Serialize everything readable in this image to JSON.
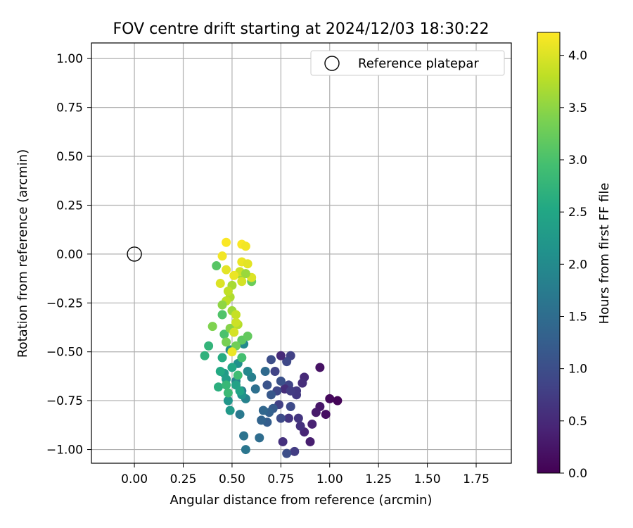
{
  "chart_data": {
    "type": "scatter",
    "title": "FOV centre drift starting at 2024/12/03 18:30:22",
    "xlabel": "Angular distance from reference (arcmin)",
    "ylabel": "Rotation from reference (arcmin)",
    "xlim": [
      -0.22,
      1.93
    ],
    "ylim": [
      -1.07,
      1.08
    ],
    "xticks": [
      0.0,
      0.25,
      0.5,
      0.75,
      1.0,
      1.25,
      1.5,
      1.75
    ],
    "xtick_labels": [
      "0.00",
      "0.25",
      "0.50",
      "0.75",
      "1.00",
      "1.25",
      "1.50",
      "1.75"
    ],
    "yticks": [
      1.0,
      0.75,
      0.5,
      0.25,
      0.0,
      -0.25,
      -0.5,
      -0.75,
      -1.0
    ],
    "ytick_labels": [
      "1.00",
      "0.75",
      "0.50",
      "0.25",
      "0.00",
      "−0.25",
      "−0.50",
      "−0.75",
      "−1.00"
    ],
    "grid": true,
    "legend": {
      "position": "top-right",
      "entries": [
        {
          "label": "Reference platepar",
          "marker": "open-circle"
        }
      ]
    },
    "reference_point": {
      "x": 0.0,
      "y": 0.0
    },
    "colorbar": {
      "label": "Hours from first FF file",
      "colormap": "viridis",
      "range": [
        0.0,
        4.22
      ],
      "ticks": [
        0.0,
        0.5,
        1.0,
        1.5,
        2.0,
        2.5,
        3.0,
        3.5,
        4.0
      ],
      "tick_labels": [
        "0.0",
        "0.5",
        "1.0",
        "1.5",
        "2.0",
        "2.5",
        "3.0",
        "3.5",
        "4.0"
      ]
    },
    "points": [
      [
        1.04,
        -0.75,
        0.05
      ],
      [
        1.0,
        -0.74,
        0.1
      ],
      [
        0.98,
        -0.82,
        0.15
      ],
      [
        0.95,
        -0.58,
        0.2
      ],
      [
        0.95,
        -0.78,
        0.25
      ],
      [
        0.93,
        -0.81,
        0.3
      ],
      [
        0.9,
        -0.96,
        0.35
      ],
      [
        0.91,
        -0.87,
        0.4
      ],
      [
        0.87,
        -0.91,
        0.45
      ],
      [
        0.87,
        -0.63,
        0.5
      ],
      [
        0.86,
        -0.66,
        0.55
      ],
      [
        0.85,
        -0.88,
        0.6
      ],
      [
        0.84,
        -0.84,
        0.65
      ],
      [
        0.83,
        -0.72,
        0.7
      ],
      [
        0.82,
        -1.01,
        0.75
      ],
      [
        0.8,
        -0.52,
        0.8
      ],
      [
        0.79,
        -0.67,
        0.85
      ],
      [
        0.78,
        -0.55,
        0.9
      ],
      [
        0.8,
        -0.78,
        0.95
      ],
      [
        0.78,
        -1.02,
        1.0
      ],
      [
        0.75,
        -0.52,
        0.5
      ],
      [
        0.77,
        -0.69,
        0.55
      ],
      [
        0.76,
        -0.96,
        0.6
      ],
      [
        0.79,
        -0.84,
        0.65
      ],
      [
        0.83,
        -0.7,
        0.7
      ],
      [
        0.8,
        -0.7,
        0.75
      ],
      [
        0.74,
        -0.77,
        0.8
      ],
      [
        0.72,
        -0.6,
        0.85
      ],
      [
        0.73,
        -0.7,
        0.9
      ],
      [
        0.75,
        -0.84,
        0.95
      ],
      [
        0.7,
        -0.54,
        1.0
      ],
      [
        0.75,
        -0.65,
        1.05
      ],
      [
        0.68,
        -0.67,
        1.1
      ],
      [
        0.7,
        -0.72,
        1.15
      ],
      [
        0.71,
        -0.79,
        1.2
      ],
      [
        0.68,
        -0.86,
        1.25
      ],
      [
        0.69,
        -0.81,
        1.3
      ],
      [
        0.65,
        -0.85,
        1.35
      ],
      [
        0.66,
        -0.8,
        1.4
      ],
      [
        0.67,
        -0.6,
        1.45
      ],
      [
        0.64,
        -0.94,
        1.5
      ],
      [
        0.62,
        -0.69,
        1.55
      ],
      [
        0.56,
        -0.93,
        1.6
      ],
      [
        0.57,
        -1.0,
        1.65
      ],
      [
        0.54,
        -0.82,
        1.7
      ],
      [
        0.55,
        -0.7,
        1.75
      ],
      [
        0.6,
        -0.63,
        1.8
      ],
      [
        0.57,
        -0.74,
        1.85
      ],
      [
        0.52,
        -0.65,
        1.9
      ],
      [
        0.58,
        -0.6,
        1.95
      ],
      [
        0.56,
        -0.46,
        2.0
      ],
      [
        0.49,
        -0.49,
        2.05
      ],
      [
        0.53,
        -0.56,
        2.1
      ],
      [
        0.55,
        -0.72,
        2.15
      ],
      [
        0.48,
        -0.75,
        2.2
      ],
      [
        0.49,
        -0.8,
        2.25
      ],
      [
        0.46,
        -0.61,
        2.3
      ],
      [
        0.47,
        -0.64,
        2.35
      ],
      [
        0.52,
        -0.67,
        2.4
      ],
      [
        0.54,
        -0.7,
        2.45
      ],
      [
        0.5,
        -0.58,
        2.5
      ],
      [
        0.44,
        -0.6,
        2.55
      ],
      [
        0.45,
        -0.53,
        2.6
      ],
      [
        0.43,
        -0.68,
        2.65
      ],
      [
        0.36,
        -0.52,
        2.7
      ],
      [
        0.38,
        -0.47,
        2.75
      ],
      [
        0.47,
        -0.67,
        2.8
      ],
      [
        0.48,
        -0.71,
        2.85
      ],
      [
        0.53,
        -0.62,
        2.9
      ],
      [
        0.55,
        -0.53,
        2.95
      ],
      [
        0.46,
        -0.41,
        3.0
      ],
      [
        0.45,
        -0.31,
        3.05
      ],
      [
        0.42,
        -0.06,
        3.1
      ],
      [
        0.55,
        -0.44,
        3.15
      ],
      [
        0.58,
        -0.42,
        3.2
      ],
      [
        0.6,
        -0.14,
        3.25
      ],
      [
        0.52,
        -0.47,
        3.3
      ],
      [
        0.47,
        -0.45,
        3.35
      ],
      [
        0.4,
        -0.37,
        3.4
      ],
      [
        0.49,
        -0.38,
        3.45
      ],
      [
        0.55,
        -0.11,
        3.55
      ],
      [
        0.5,
        -0.29,
        3.6
      ],
      [
        0.49,
        -0.22,
        3.7
      ],
      [
        0.53,
        -0.36,
        3.75
      ],
      [
        0.52,
        -0.31,
        3.85
      ],
      [
        0.54,
        -0.09,
        3.9
      ],
      [
        0.55,
        -0.14,
        3.95
      ],
      [
        0.44,
        -0.15,
        4.0
      ],
      [
        0.47,
        -0.08,
        4.05
      ],
      [
        0.51,
        -0.11,
        4.1
      ],
      [
        0.45,
        -0.01,
        4.15
      ],
      [
        0.47,
        0.06,
        4.2
      ],
      [
        0.55,
        0.05,
        4.2
      ],
      [
        0.57,
        0.04,
        4.15
      ],
      [
        0.55,
        -0.04,
        4.1
      ],
      [
        0.58,
        -0.05,
        4.05
      ],
      [
        0.6,
        -0.12,
        4.0
      ],
      [
        0.51,
        -0.4,
        3.95
      ],
      [
        0.52,
        -0.35,
        3.9
      ],
      [
        0.5,
        -0.5,
        4.1
      ],
      [
        0.47,
        -0.24,
        3.8
      ],
      [
        0.5,
        -0.16,
        3.65
      ],
      [
        0.45,
        -0.26,
        3.5
      ],
      [
        0.57,
        -0.1,
        3.58
      ],
      [
        0.48,
        -0.19,
        3.82
      ]
    ]
  }
}
